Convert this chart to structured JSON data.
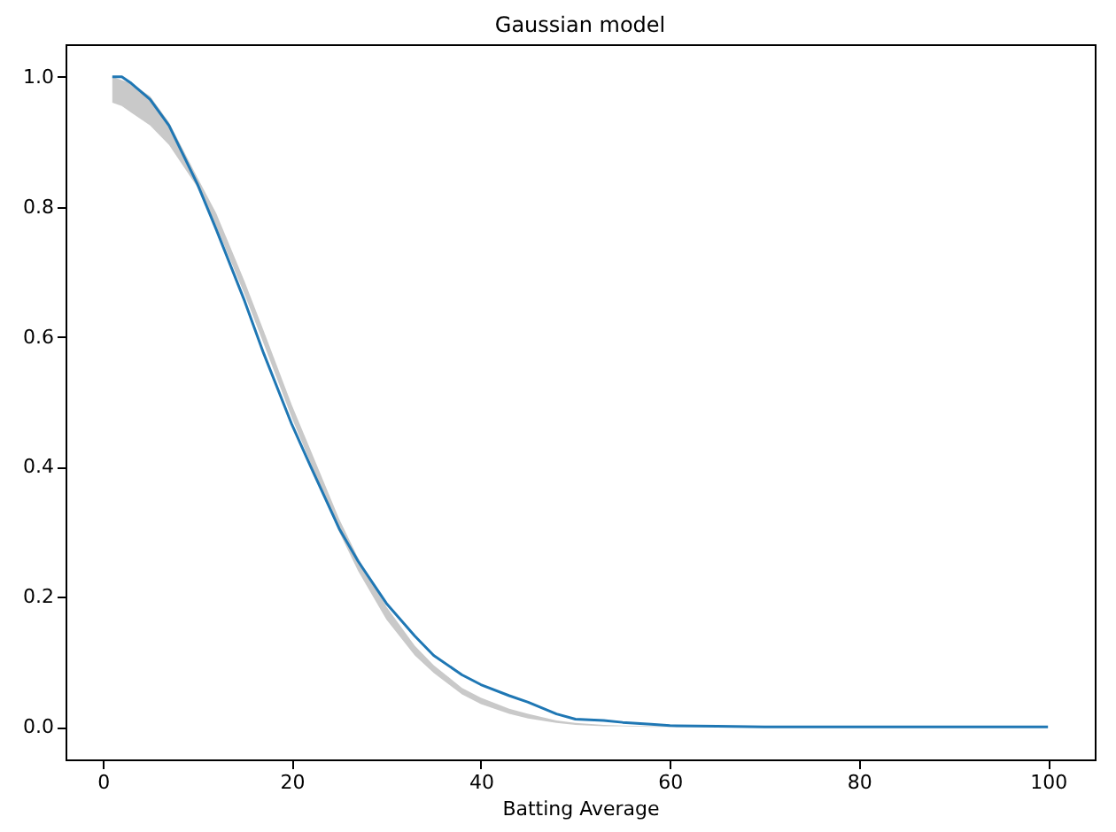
{
  "chart_data": {
    "type": "line",
    "title": "Gaussian model",
    "xlabel": "Batting Average",
    "x": [
      1,
      2,
      3,
      5,
      7,
      10,
      12,
      15,
      17,
      20,
      22,
      25,
      27,
      30,
      33,
      35,
      38,
      40,
      43,
      45,
      48,
      50,
      53,
      55,
      58,
      60,
      65,
      70,
      80,
      90,
      100
    ],
    "series": [
      {
        "color": "#1f77b4",
        "values": [
          1.0,
          1.0,
          0.99,
          0.965,
          0.925,
          0.835,
          0.765,
          0.655,
          0.575,
          0.465,
          0.4,
          0.305,
          0.255,
          0.19,
          0.14,
          0.11,
          0.08,
          0.065,
          0.048,
          0.038,
          0.02,
          0.012,
          0.01,
          0.007,
          0.004,
          0.002,
          0.001,
          0,
          0,
          0,
          0
        ],
        "lower": [
          0.96,
          0.955,
          0.945,
          0.925,
          0.895,
          0.83,
          0.77,
          0.665,
          0.59,
          0.475,
          0.405,
          0.3,
          0.24,
          0.165,
          0.11,
          0.083,
          0.05,
          0.035,
          0.02,
          0.013,
          0.006,
          0.003,
          0.001,
          0.001,
          0,
          0,
          0,
          0,
          0,
          0,
          0
        ],
        "upper": [
          1.0,
          0.995,
          0.99,
          0.97,
          0.93,
          0.845,
          0.79,
          0.685,
          0.61,
          0.495,
          0.425,
          0.32,
          0.26,
          0.185,
          0.125,
          0.095,
          0.06,
          0.045,
          0.028,
          0.02,
          0.01,
          0.006,
          0.003,
          0.002,
          0.001,
          0.001,
          0,
          0,
          0,
          0,
          0
        ]
      }
    ],
    "xlim": [
      -3.95,
      104.95
    ],
    "ylim": [
      -0.05,
      1.05
    ],
    "xticks": [
      0,
      20,
      40,
      60,
      80,
      100
    ],
    "yticks": [
      {
        "value": 0,
        "label": "0.0"
      },
      {
        "value": 0.2,
        "label": "0.2"
      },
      {
        "value": 0.4,
        "label": "0.4"
      },
      {
        "value": 0.6,
        "label": "0.6"
      },
      {
        "value": 0.8,
        "label": "0.8"
      },
      {
        "value": 1,
        "label": "1.0"
      }
    ],
    "grid": false,
    "marker": "none",
    "line_style": "solid"
  }
}
